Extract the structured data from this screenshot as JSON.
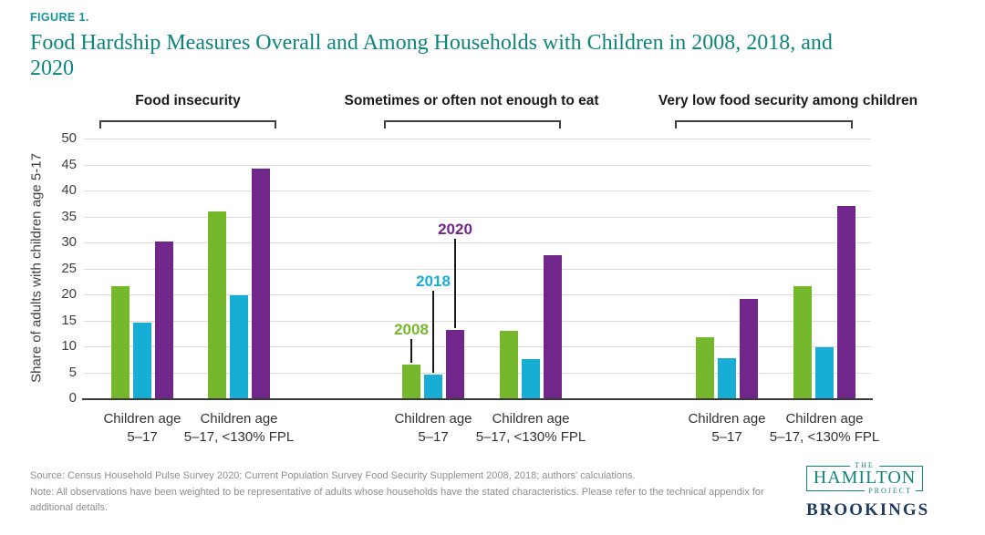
{
  "figure_label": "FIGURE 1.",
  "title_line1": "Food Hardship Measures Overall and Among Households with Children in 2008, 2018, and",
  "title_line2": "2020",
  "chart_data": {
    "type": "bar",
    "title": "Food Hardship Measures Overall and Among Households with Children in 2008, 2018, and 2020",
    "xlabel": "",
    "ylabel": "Share of adults with children age 5-17",
    "ylim": [
      0,
      50
    ],
    "ytick_step": 5,
    "grid": true,
    "legend_position": "inline annotations above bars of middle panel",
    "series_years": [
      "2008",
      "2018",
      "2020"
    ],
    "colors": {
      "2008": "#75B82C",
      "2018": "#18ADD4",
      "2020": "#70268A"
    },
    "panels": [
      {
        "title": "Food insecurity",
        "groups": [
          {
            "label_line1": "Children age",
            "label_line2": "5–17",
            "values": [
              21.5,
              14.5,
              30.2
            ]
          },
          {
            "label_line1": "Children age",
            "label_line2": "5–17, <130% FPL",
            "values": [
              36.0,
              19.8,
              44.2
            ]
          }
        ]
      },
      {
        "title": "Sometimes or often not enough to eat",
        "groups": [
          {
            "label_line1": "Children age",
            "label_line2": "5–17",
            "values": [
              6.5,
              4.5,
              13.2
            ]
          },
          {
            "label_line1": "Children age",
            "label_line2": "5–17, <130% FPL",
            "values": [
              13.0,
              7.5,
              27.5
            ]
          }
        ]
      },
      {
        "title": "Very low food security among children",
        "groups": [
          {
            "label_line1": "Children age",
            "label_line2": "5–17",
            "values": [
              11.7,
              7.8,
              19.2
            ]
          },
          {
            "label_line1": "Children age",
            "label_line2": "5–17, <130% FPL",
            "values": [
              21.5,
              9.8,
              37.0
            ]
          }
        ]
      }
    ]
  },
  "footer": {
    "source": "Source: Census Household Pulse Survey 2020; Current Population Survey Food Security Supplement 2008, 2018; authors' calculations.",
    "note": "Note: All observations have been weighted to be representative of adults whose households have the stated characteristics. Please refer to the technical appendix for additional details."
  },
  "logo": {
    "the": "THE",
    "hamilton": "HAMILTON",
    "project": "PROJECT",
    "brookings": "BROOKINGS"
  }
}
